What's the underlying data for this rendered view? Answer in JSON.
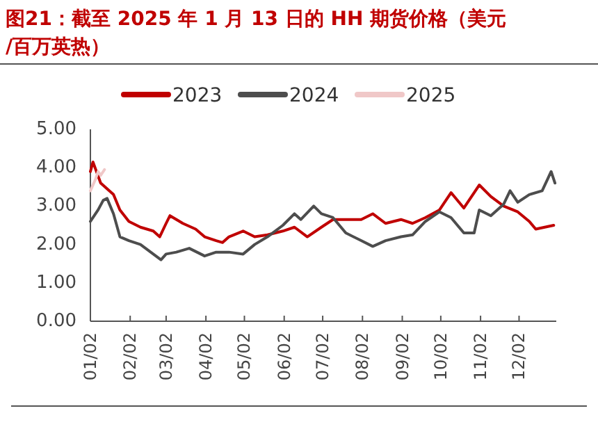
{
  "chart_data": {
    "type": "line",
    "title": "图21：截至 2025 年 1 月 13 日的 HH 期货价格（美元/百万英热）",
    "series": [
      {
        "name": "2023",
        "color": "#c00000",
        "x": [
          "--01-02",
          "--01-04",
          "--01-10",
          "--01-20",
          "--01-25",
          "--02-01",
          "--02-10",
          "--02-20",
          "--02-25",
          "--03-02",
          "--03-05",
          "--03-15",
          "--03-25",
          "--04-01",
          "--04-10",
          "--04-15",
          "--04-20",
          "--05-01",
          "--05-10",
          "--05-20",
          "--06-01",
          "--06-10",
          "--06-20",
          "--07-01",
          "--07-10",
          "--07-20",
          "--08-01",
          "--08-10",
          "--08-20",
          "--09-01",
          "--09-10",
          "--09-20",
          "--10-01",
          "--10-10",
          "--10-20",
          "--11-01",
          "--11-10",
          "--11-20",
          "--12-01",
          "--12-10",
          "--12-15",
          "--12-29"
        ],
        "values": [
          3.9,
          4.15,
          3.6,
          3.3,
          2.9,
          2.6,
          2.45,
          2.35,
          2.2,
          2.55,
          2.75,
          2.55,
          2.4,
          2.2,
          2.1,
          2.05,
          2.2,
          2.35,
          2.2,
          2.25,
          2.35,
          2.45,
          2.2,
          2.45,
          2.65,
          2.65,
          2.65,
          2.8,
          2.55,
          2.65,
          2.55,
          2.7,
          2.9,
          3.35,
          2.95,
          3.55,
          3.25,
          3.0,
          2.85,
          2.6,
          2.4,
          2.5
        ]
      },
      {
        "name": "2024",
        "color": "#4d4d4d",
        "x": [
          "--01-02",
          "--01-08",
          "--01-12",
          "--01-15",
          "--01-20",
          "--01-25",
          "--02-01",
          "--02-10",
          "--02-20",
          "--02-26",
          "--03-02",
          "--03-10",
          "--03-20",
          "--04-01",
          "--04-10",
          "--04-20",
          "--05-01",
          "--05-10",
          "--05-20",
          "--06-01",
          "--06-10",
          "--06-15",
          "--06-25",
          "--07-01",
          "--07-10",
          "--07-20",
          "--08-01",
          "--08-10",
          "--08-20",
          "--09-01",
          "--09-10",
          "--09-20",
          "--10-01",
          "--10-10",
          "--10-20",
          "--10-28",
          "--11-01",
          "--11-10",
          "--11-20",
          "--11-25",
          "--12-01",
          "--12-10",
          "--12-20",
          "--12-27",
          "--12-30"
        ],
        "values": [
          2.6,
          2.9,
          3.15,
          3.2,
          2.8,
          2.2,
          2.1,
          2.0,
          1.75,
          1.6,
          1.75,
          1.8,
          1.9,
          1.7,
          1.8,
          1.8,
          1.75,
          2.0,
          2.2,
          2.5,
          2.8,
          2.65,
          3.0,
          2.8,
          2.7,
          2.3,
          2.1,
          1.95,
          2.1,
          2.2,
          2.25,
          2.6,
          2.85,
          2.7,
          2.3,
          2.3,
          2.9,
          2.75,
          3.05,
          3.4,
          3.1,
          3.3,
          3.4,
          3.9,
          3.6
        ]
      },
      {
        "name": "2025",
        "color": "#f0c8c8",
        "x": [
          "--01-02",
          "--01-06",
          "--01-08",
          "--01-10",
          "--01-13"
        ],
        "values": [
          3.4,
          3.7,
          3.9,
          3.8,
          3.95
        ]
      }
    ],
    "xlim": [
      "--01-02",
      "--12-31"
    ],
    "xticks": [
      {
        "value": "--01-02",
        "label": "01/02"
      },
      {
        "value": "--02-02",
        "label": "02/02"
      },
      {
        "value": "--03-02",
        "label": "03/02"
      },
      {
        "value": "--04-02",
        "label": "04/02"
      },
      {
        "value": "--05-02",
        "label": "05/02"
      },
      {
        "value": "--06-02",
        "label": "06/02"
      },
      {
        "value": "--07-02",
        "label": "07/02"
      },
      {
        "value": "--08-02",
        "label": "08/02"
      },
      {
        "value": "--09-02",
        "label": "09/02"
      },
      {
        "value": "--10-02",
        "label": "10/02"
      },
      {
        "value": "--11-02",
        "label": "11/02"
      },
      {
        "value": "--12-02",
        "label": "12/02"
      }
    ],
    "ylim": [
      0,
      5
    ],
    "yticks": [
      {
        "value": 0,
        "label": "0.00"
      },
      {
        "value": 1,
        "label": "1.00"
      },
      {
        "value": 2,
        "label": "2.00"
      },
      {
        "value": 3,
        "label": "3.00"
      },
      {
        "value": 4,
        "label": "4.00"
      },
      {
        "value": 5,
        "label": "5.00"
      }
    ],
    "legend": "top",
    "grid": false,
    "marker": "none",
    "line_style": "solid"
  }
}
